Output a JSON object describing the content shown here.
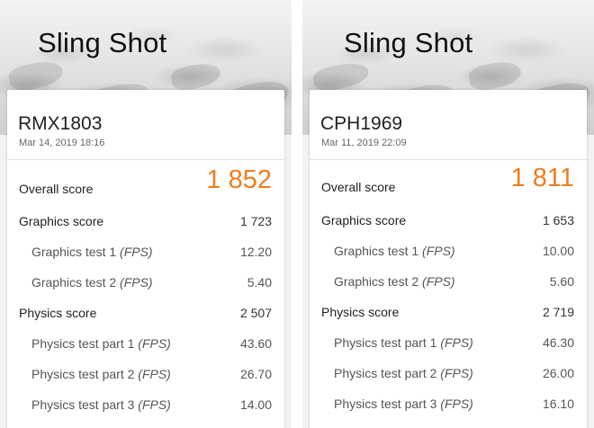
{
  "panels": [
    {
      "hero_title": "Sling Shot",
      "device": "RMX1803",
      "date": "Mar 14, 2019 18:16",
      "overall_label": "Overall score",
      "overall_value": "1 852",
      "graphics_label": "Graphics score",
      "graphics_value": "1 723",
      "gt1_label": "Graphics test 1",
      "gt1_unit": "(FPS)",
      "gt1_value": "12.20",
      "gt2_label": "Graphics test 2",
      "gt2_unit": "(FPS)",
      "gt2_value": "5.40",
      "physics_label": "Physics score",
      "physics_value": "2 507",
      "pt1_label": "Physics test part 1",
      "pt1_unit": "(FPS)",
      "pt1_value": "43.60",
      "pt2_label": "Physics test part 2",
      "pt2_unit": "(FPS)",
      "pt2_value": "26.70",
      "pt3_label": "Physics test part 3",
      "pt3_unit": "(FPS)",
      "pt3_value": "14.00"
    },
    {
      "hero_title": "Sling Shot",
      "device": "CPH1969",
      "date": "Mar 11, 2019 22:09",
      "overall_label": "Overall score",
      "overall_value": "1 811",
      "graphics_label": "Graphics score",
      "graphics_value": "1 653",
      "gt1_label": "Graphics test 1",
      "gt1_unit": "(FPS)",
      "gt1_value": "10.00",
      "gt2_label": "Graphics test 2",
      "gt2_unit": "(FPS)",
      "gt2_value": "5.60",
      "physics_label": "Physics score",
      "physics_value": "2 719",
      "pt1_label": "Physics test part 1",
      "pt1_unit": "(FPS)",
      "pt1_value": "46.30",
      "pt2_label": "Physics test part 2",
      "pt2_unit": "(FPS)",
      "pt2_value": "26.00",
      "pt3_label": "Physics test part 3",
      "pt3_unit": "(FPS)",
      "pt3_value": "16.10"
    }
  ],
  "colors": {
    "overall_score": "#f07d1e",
    "card_background": "#ffffff",
    "page_background": "#f3f3f3"
  }
}
